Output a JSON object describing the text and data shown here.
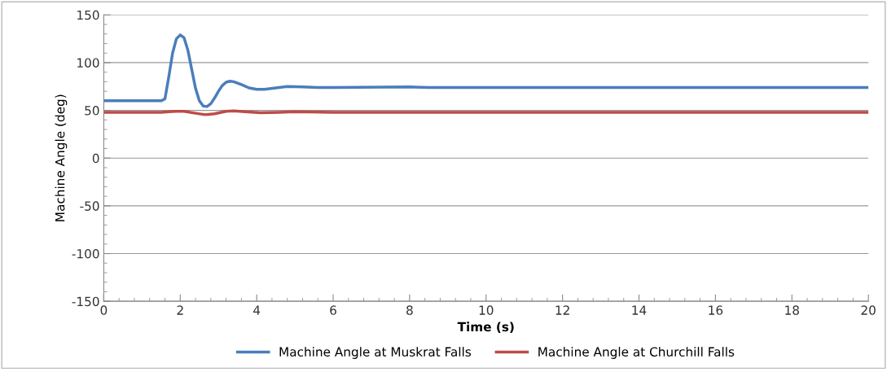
{
  "chart_data": {
    "type": "line",
    "xlabel": "Time (s)",
    "ylabel": "Machine Angle (deg)",
    "xlim": [
      0,
      20
    ],
    "xticks": [
      0,
      2,
      4,
      6,
      8,
      10,
      12,
      14,
      16,
      18,
      20
    ],
    "ylim": [
      -150,
      150
    ],
    "yticks": [
      -150,
      -100,
      -50,
      0,
      50,
      100,
      150
    ],
    "grid": "y",
    "legend": "bottom",
    "marker": "none",
    "line_style": "solid",
    "series": [
      {
        "name": "Machine Angle at Muskrat Falls",
        "color": "#4a7ebb",
        "x": [
          0,
          1.5,
          1.6,
          1.7,
          1.8,
          1.9,
          2.0,
          2.1,
          2.2,
          2.3,
          2.4,
          2.5,
          2.6,
          2.7,
          2.8,
          2.9,
          3.0,
          3.1,
          3.2,
          3.3,
          3.4,
          3.6,
          3.8,
          4.0,
          4.2,
          4.5,
          4.8,
          5.2,
          5.6,
          6,
          8,
          8.5,
          20
        ],
        "values": [
          60,
          60,
          62,
          85,
          110,
          125,
          129,
          126,
          113,
          93,
          73,
          60,
          54.5,
          54,
          57,
          63,
          70,
          76,
          79.5,
          80.5,
          80,
          77,
          73.5,
          72,
          72,
          73.5,
          75,
          74.5,
          74,
          74,
          74.5,
          74,
          74
        ]
      },
      {
        "name": "Machine Angle at Churchill Falls",
        "color": "#be4b48",
        "x": [
          0,
          1.5,
          1.7,
          1.9,
          2.1,
          2.4,
          2.65,
          2.9,
          3.2,
          3.4,
          3.7,
          4.1,
          4.6,
          5,
          6,
          20
        ],
        "values": [
          48,
          48,
          48.5,
          49,
          49,
          47,
          45.5,
          46.5,
          49,
          49.5,
          48.5,
          47.5,
          48,
          48.5,
          48,
          48
        ]
      }
    ]
  }
}
